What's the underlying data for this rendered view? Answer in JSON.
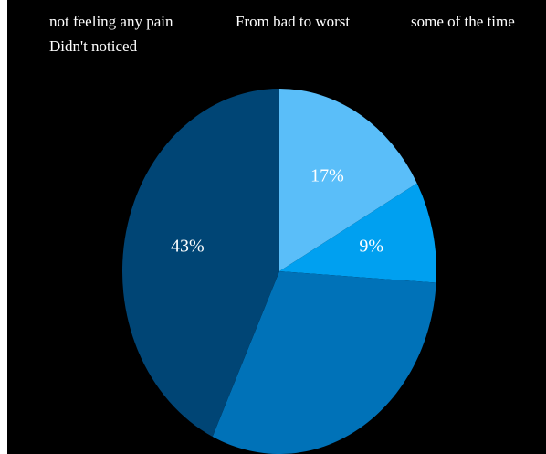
{
  "chart_data": {
    "type": "pie",
    "legend": [
      "not feeling any pain",
      "From bad to worst",
      "some of the time",
      "Didn't noticed"
    ],
    "legend_placement": "top",
    "slices": [
      {
        "name": "not feeling any pain",
        "value": 17,
        "label": "17%",
        "color": "#5ABEF9"
      },
      {
        "name": "From bad to worst",
        "value": 9,
        "label": "9%",
        "color": "#00A0F0"
      },
      {
        "name": "some of the time",
        "value": 31,
        "label": "",
        "color": "#0072B8"
      },
      {
        "name": "Didn't noticed",
        "value": 43,
        "label": "43%",
        "color": "#004575"
      }
    ],
    "background": "#000000"
  }
}
